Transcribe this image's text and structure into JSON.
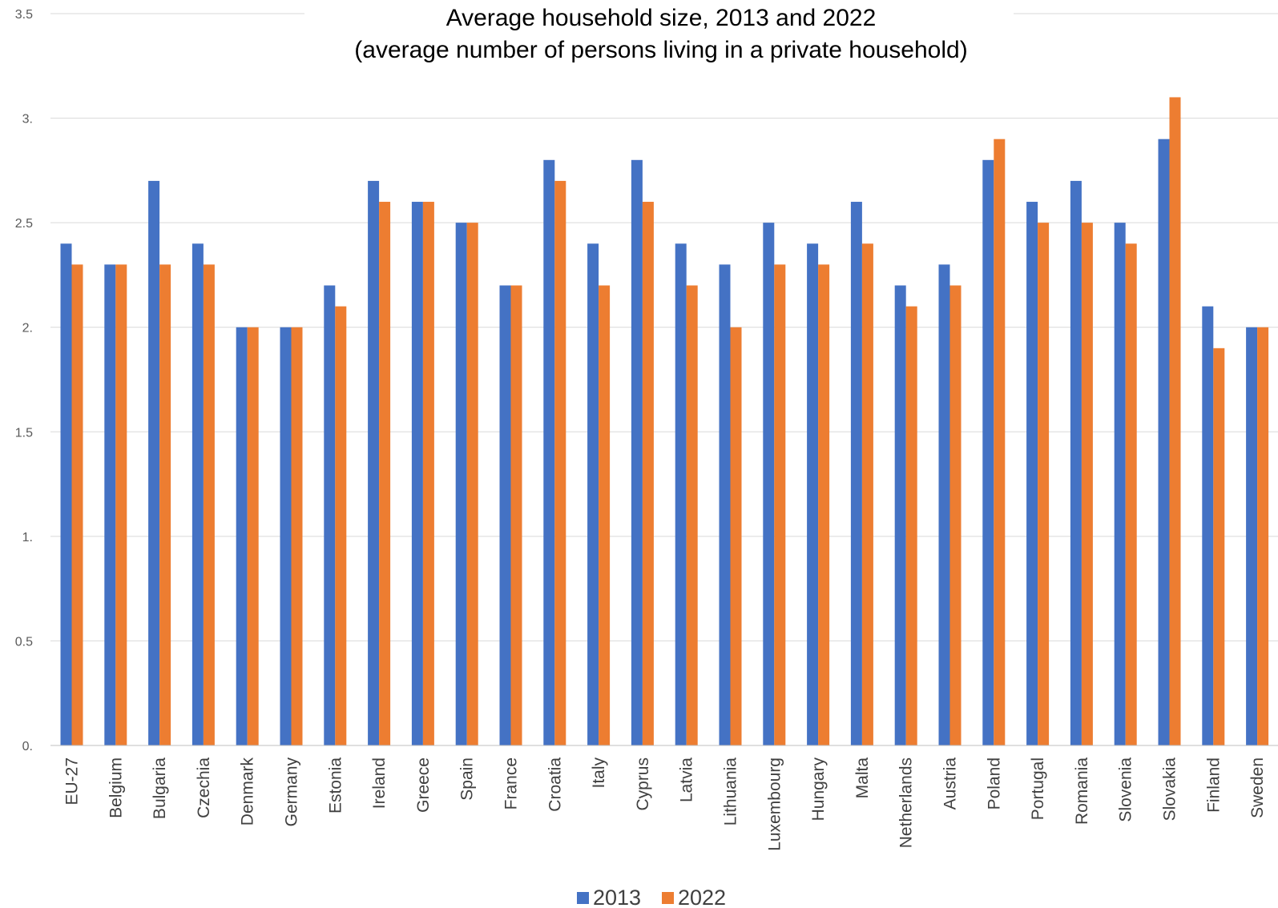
{
  "chart_data": {
    "type": "bar",
    "title": "Average household size, 2013 and 2022",
    "subtitle": "(average number of persons living in a private household)",
    "xlabel": "",
    "ylabel": "",
    "ylim": [
      0,
      3.5
    ],
    "yticks": [
      "0.",
      "0.5",
      "1.",
      "1.5",
      "2.",
      "2.5",
      "3.",
      "3.5"
    ],
    "grid": true,
    "legend_position": "bottom",
    "categories": [
      "EU-27",
      "Belgium",
      "Bulgaria",
      "Czechia",
      "Denmark",
      "Germany",
      "Estonia",
      "Ireland",
      "Greece",
      "Spain",
      "France",
      "Croatia",
      "Italy",
      "Cyprus",
      "Latvia",
      "Lithuania",
      "Luxembourg",
      "Hungary",
      "Malta",
      "Netherlands",
      "Austria",
      "Poland",
      "Portugal",
      "Romania",
      "Slovenia",
      "Slovakia",
      "Finland",
      "Sweden"
    ],
    "series": [
      {
        "name": "2013",
        "color": "#4472c4",
        "values": [
          2.4,
          2.3,
          2.7,
          2.4,
          2.0,
          2.0,
          2.2,
          2.7,
          2.6,
          2.5,
          2.2,
          2.8,
          2.4,
          2.8,
          2.4,
          2.3,
          2.5,
          2.4,
          2.6,
          2.2,
          2.3,
          2.8,
          2.6,
          2.7,
          2.5,
          2.9,
          2.1,
          2.0
        ]
      },
      {
        "name": "2022",
        "color": "#ed7d31",
        "values": [
          2.3,
          2.3,
          2.3,
          2.3,
          2.0,
          2.0,
          2.1,
          2.6,
          2.6,
          2.5,
          2.2,
          2.7,
          2.2,
          2.6,
          2.2,
          2.0,
          2.3,
          2.3,
          2.4,
          2.1,
          2.2,
          2.9,
          2.5,
          2.5,
          2.4,
          3.1,
          1.9,
          2.0
        ]
      }
    ]
  }
}
